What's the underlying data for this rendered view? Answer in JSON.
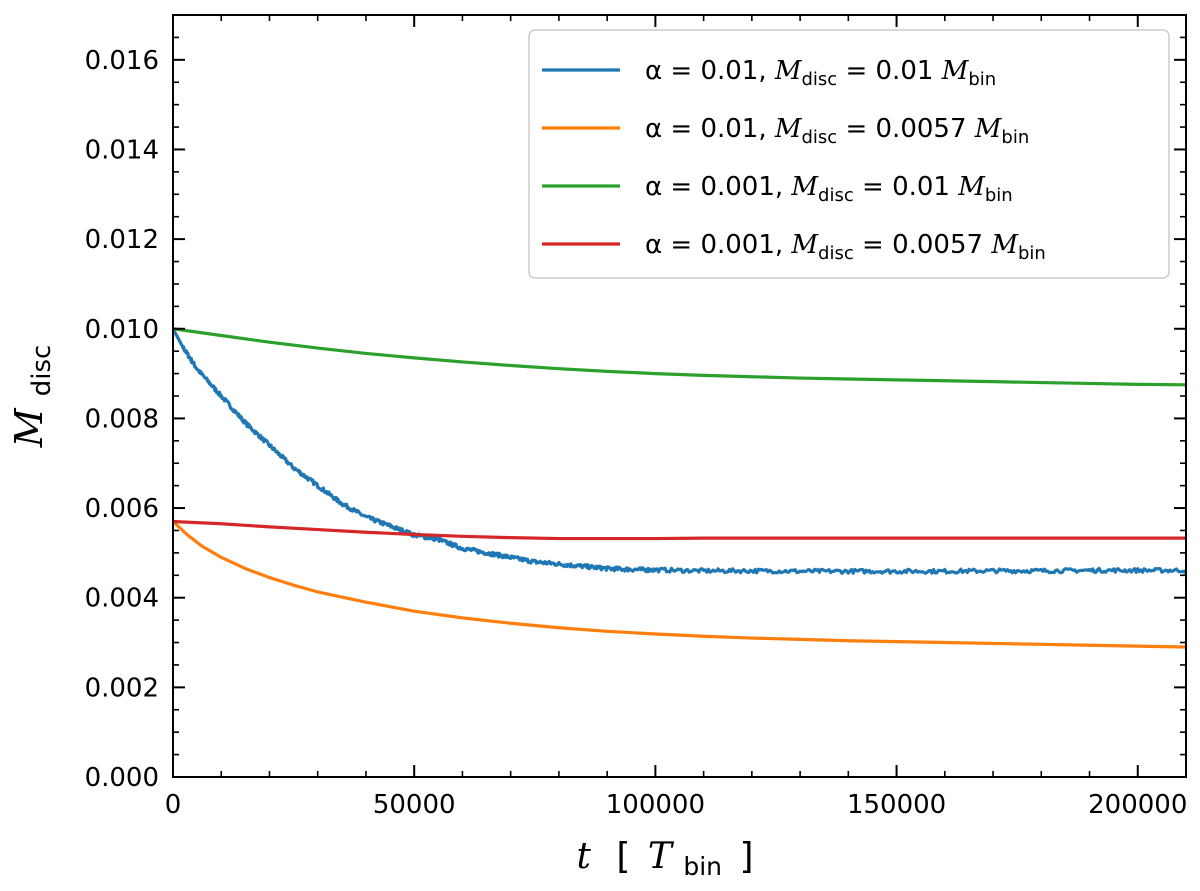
{
  "chart_data": {
    "type": "line",
    "title": "",
    "xlabel": {
      "main": "t",
      "bracket_open": "[",
      "unit": "T",
      "unit_sub": "bin",
      "bracket_close": "]"
    },
    "ylabel": {
      "main": "M",
      "sub": "disc"
    },
    "xlim": [
      0,
      210000
    ],
    "ylim": [
      0,
      0.017
    ],
    "xticks": [
      0,
      50000,
      100000,
      150000,
      200000
    ],
    "xtick_labels": [
      "0",
      "50000",
      "100000",
      "150000",
      "200000"
    ],
    "yticks": [
      0,
      0.002,
      0.004,
      0.006,
      0.008,
      0.01,
      0.012,
      0.014,
      0.016
    ],
    "ytick_labels": [
      "0.000",
      "0.002",
      "0.004",
      "0.006",
      "0.008",
      "0.010",
      "0.012",
      "0.014",
      "0.016"
    ],
    "grid": false,
    "legend_position": "top-right",
    "series": [
      {
        "name": "α = 0.01, M_disc = 0.01 M_bin",
        "legend": {
          "alpha": "α = 0.01,",
          "m": "M",
          "msub": "disc",
          "val": " = 0.01 ",
          "mb": "M",
          "mbsub": "bin"
        },
        "color": "#1f77b4",
        "noise": true,
        "x": [
          0,
          2000,
          5000,
          10000,
          15000,
          20000,
          25000,
          30000,
          35000,
          40000,
          45000,
          50000,
          55000,
          60000,
          65000,
          70000,
          75000,
          80000,
          85000,
          90000,
          95000,
          100000,
          110000,
          120000,
          130000,
          140000,
          150000,
          160000,
          170000,
          180000,
          190000,
          200000,
          210000
        ],
        "y": [
          0.01,
          0.0096,
          0.0091,
          0.0085,
          0.0079,
          0.0074,
          0.0069,
          0.0065,
          0.0061,
          0.0058,
          0.0056,
          0.0054,
          0.0053,
          0.0051,
          0.005,
          0.0049,
          0.0048,
          0.00475,
          0.0047,
          0.00465,
          0.00463,
          0.00462,
          0.0046,
          0.0046,
          0.00459,
          0.00459,
          0.00459,
          0.00459,
          0.0046,
          0.0046,
          0.00461,
          0.00461,
          0.00461
        ]
      },
      {
        "name": "α = 0.01, M_disc = 0.0057 M_bin",
        "legend": {
          "alpha": "α = 0.01,",
          "m": "M",
          "msub": "disc",
          "val": " = 0.0057 ",
          "mb": "M",
          "mbsub": "bin"
        },
        "color": "#ff7f0e",
        "noise": false,
        "x": [
          0,
          3000,
          6000,
          10000,
          15000,
          20000,
          25000,
          30000,
          40000,
          50000,
          60000,
          70000,
          80000,
          90000,
          100000,
          110000,
          120000,
          130000,
          140000,
          150000,
          160000,
          170000,
          180000,
          190000,
          200000,
          210000
        ],
        "y": [
          0.0057,
          0.0054,
          0.00515,
          0.0049,
          0.00465,
          0.00445,
          0.00428,
          0.00413,
          0.0039,
          0.0037,
          0.00355,
          0.00343,
          0.00333,
          0.00325,
          0.00319,
          0.00314,
          0.0031,
          0.00307,
          0.00304,
          0.00302,
          0.003,
          0.00298,
          0.00296,
          0.00294,
          0.00292,
          0.0029
        ]
      },
      {
        "name": "α = 0.001, M_disc = 0.01 M_bin",
        "legend": {
          "alpha": "α = 0.001,",
          "m": "M",
          "msub": "disc",
          "val": " = 0.01 ",
          "mb": "M",
          "mbsub": "bin"
        },
        "color": "#2ca02c",
        "noise": false,
        "x": [
          0,
          10000,
          20000,
          30000,
          40000,
          50000,
          60000,
          70000,
          80000,
          90000,
          100000,
          110000,
          120000,
          130000,
          140000,
          150000,
          160000,
          170000,
          180000,
          190000,
          200000,
          210000
        ],
        "y": [
          0.01,
          0.00985,
          0.0097,
          0.00957,
          0.00945,
          0.00935,
          0.00926,
          0.00918,
          0.00911,
          0.00905,
          0.009,
          0.00896,
          0.00893,
          0.0089,
          0.00888,
          0.00886,
          0.00884,
          0.00882,
          0.0088,
          0.00878,
          0.00876,
          0.00875
        ]
      },
      {
        "name": "α = 0.001, M_disc = 0.0057 M_bin",
        "legend": {
          "alpha": "α = 0.001,",
          "m": "M",
          "msub": "disc",
          "val": " = 0.0057 ",
          "mb": "M",
          "mbsub": "bin"
        },
        "color": "#d62728",
        "noise": false,
        "x": [
          0,
          10000,
          20000,
          30000,
          40000,
          50000,
          60000,
          70000,
          80000,
          90000,
          100000,
          110000,
          120000,
          130000,
          140000,
          150000,
          160000,
          170000,
          180000,
          190000,
          200000,
          210000
        ],
        "y": [
          0.0057,
          0.00565,
          0.00558,
          0.00552,
          0.00546,
          0.00541,
          0.00537,
          0.00534,
          0.00532,
          0.00532,
          0.00532,
          0.00533,
          0.00533,
          0.00533,
          0.00533,
          0.00533,
          0.00533,
          0.00533,
          0.00533,
          0.00533,
          0.00533,
          0.00533
        ]
      }
    ]
  }
}
